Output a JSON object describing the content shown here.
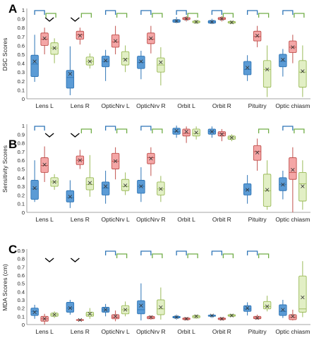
{
  "figure": {
    "series_colors": [
      {
        "fill": "#5b9bd5",
        "stroke": "#2e75b6"
      },
      {
        "fill": "#f4a6a6",
        "stroke": "#c0504d"
      },
      {
        "fill": "#e2efc5",
        "stroke": "#9bbb59"
      }
    ],
    "bracket_colors": {
      "blue": "#2e75b6",
      "green": "#70ad47",
      "black": "#000000"
    }
  },
  "chart_data": [
    {
      "type": "box",
      "panel_label": "A",
      "ylabel": "DSC Scores",
      "ylim": [
        0,
        1
      ],
      "yticks": [
        "0",
        "0.1",
        "0.2",
        "0.3",
        "0.4",
        "0.5",
        "0.6",
        "0.7",
        "0.8",
        "0.9",
        "1"
      ],
      "categories": [
        "Lens L",
        "Lens R",
        "OpticNrv L",
        "OpticNrv R",
        "Orbit L",
        "Orbit R",
        "Pituitry",
        "Optic chiasm"
      ],
      "series": [
        {
          "boxes": [
            [
              0.19,
              0.25,
              0.39,
              0.49,
              0.72,
              0.42
            ],
            [
              0.04,
              0.12,
              0.24,
              0.32,
              0.59,
              0.28
            ],
            [
              0.2,
              0.36,
              0.42,
              0.48,
              0.55,
              0.43
            ],
            [
              0.22,
              0.34,
              0.41,
              0.48,
              0.54,
              0.42
            ],
            [
              0.85,
              0.86,
              0.875,
              0.89,
              0.92,
              0.875
            ],
            [
              0.84,
              0.85,
              0.865,
              0.88,
              0.9,
              0.865
            ],
            [
              0.2,
              0.27,
              0.33,
              0.42,
              0.49,
              0.35
            ],
            [
              0.25,
              0.36,
              0.42,
              0.5,
              0.56,
              0.44
            ]
          ]
        },
        {
          "boxes": [
            [
              0.5,
              0.6,
              0.67,
              0.74,
              0.8,
              0.68
            ],
            [
              0.61,
              0.67,
              0.72,
              0.76,
              0.8,
              0.71
            ],
            [
              0.5,
              0.58,
              0.64,
              0.72,
              0.82,
              0.65
            ],
            [
              0.51,
              0.62,
              0.67,
              0.74,
              0.82,
              0.68
            ],
            [
              0.87,
              0.89,
              0.9,
              0.915,
              0.93,
              0.9
            ],
            [
              0.87,
              0.89,
              0.9,
              0.915,
              0.93,
              0.9
            ],
            [
              0.58,
              0.65,
              0.7,
              0.76,
              0.82,
              0.71
            ],
            [
              0.4,
              0.52,
              0.58,
              0.65,
              0.72,
              0.58
            ]
          ]
        },
        {
          "boxes": [
            [
              0.4,
              0.5,
              0.57,
              0.63,
              0.68,
              0.57
            ],
            [
              0.34,
              0.38,
              0.42,
              0.47,
              0.51,
              0.42
            ],
            [
              0.3,
              0.38,
              0.45,
              0.53,
              0.6,
              0.44
            ],
            [
              0.15,
              0.3,
              0.38,
              0.46,
              0.58,
              0.41
            ],
            [
              0.84,
              0.855,
              0.865,
              0.875,
              0.89,
              0.865
            ],
            [
              0.84,
              0.85,
              0.86,
              0.87,
              0.88,
              0.86
            ],
            [
              0.02,
              0.13,
              0.33,
              0.43,
              0.6,
              0.33
            ],
            [
              0.02,
              0.13,
              0.3,
              0.43,
              0.6,
              0.31
            ]
          ]
        }
      ],
      "brackets": [
        {
          "category": 0,
          "type": "blue"
        },
        {
          "category": 0,
          "type": "chevron"
        },
        {
          "category": 0,
          "type": "green"
        },
        {
          "category": 1,
          "type": "chevron"
        },
        {
          "category": 1,
          "type": "green"
        },
        {
          "category": 2,
          "type": "blue"
        },
        {
          "category": 2,
          "type": "green"
        },
        {
          "category": 3,
          "type": "blue"
        },
        {
          "category": 3,
          "type": "green"
        },
        {
          "category": 4,
          "type": "blue"
        },
        {
          "category": 4,
          "type": "green"
        },
        {
          "category": 5,
          "type": "blue"
        },
        {
          "category": 5,
          "type": "green"
        },
        {
          "category": 6,
          "type": "blue"
        },
        {
          "category": 6,
          "type": "green"
        },
        {
          "category": 7,
          "type": "blue"
        },
        {
          "category": 7,
          "type": "green"
        }
      ]
    },
    {
      "type": "box",
      "panel_label": "B",
      "ylabel": "Sensitivity Scores",
      "ylim": [
        0,
        1
      ],
      "yticks": [
        "0",
        "0.1",
        "0.2",
        "0.3",
        "0.4",
        "0.5",
        "0.6",
        "0.7",
        "0.8",
        "0.9",
        "1"
      ],
      "categories": [
        "Lens L",
        "Lens R",
        "OpticNrv L",
        "OpticNrv R",
        "Orbit L",
        "Orbit R",
        "Pituitry",
        "Optic chiasm"
      ],
      "series": [
        {
          "boxes": [
            [
              0.12,
              0.15,
              0.27,
              0.37,
              0.6,
              0.28
            ],
            [
              0.05,
              0.12,
              0.17,
              0.25,
              0.37,
              0.18
            ],
            [
              0.1,
              0.2,
              0.28,
              0.35,
              0.48,
              0.3
            ],
            [
              0.12,
              0.22,
              0.3,
              0.37,
              0.52,
              0.3
            ],
            [
              0.86,
              0.9,
              0.93,
              0.97,
              1.0,
              0.94
            ],
            [
              0.86,
              0.9,
              0.93,
              0.96,
              0.99,
              0.93
            ],
            [
              0.1,
              0.2,
              0.26,
              0.33,
              0.43,
              0.26
            ],
            [
              0.15,
              0.25,
              0.32,
              0.4,
              0.48,
              0.32
            ]
          ]
        },
        {
          "boxes": [
            [
              0.35,
              0.46,
              0.54,
              0.63,
              0.76,
              0.55
            ],
            [
              0.5,
              0.55,
              0.6,
              0.65,
              0.72,
              0.6
            ],
            [
              0.38,
              0.5,
              0.59,
              0.68,
              0.75,
              0.59
            ],
            [
              0.42,
              0.56,
              0.63,
              0.68,
              0.75,
              0.62
            ],
            [
              0.8,
              0.88,
              0.91,
              0.96,
              0.99,
              0.93
            ],
            [
              0.82,
              0.88,
              0.91,
              0.93,
              0.96,
              0.9
            ],
            [
              0.48,
              0.6,
              0.7,
              0.77,
              0.85,
              0.69
            ],
            [
              0.0,
              0.38,
              0.46,
              0.63,
              0.75,
              0.49
            ]
          ]
        },
        {
          "boxes": [
            [
              0.26,
              0.3,
              0.35,
              0.4,
              0.44,
              0.35
            ],
            [
              0.18,
              0.26,
              0.32,
              0.4,
              0.66,
              0.34
            ],
            [
              0.2,
              0.25,
              0.3,
              0.38,
              0.46,
              0.31
            ],
            [
              0.12,
              0.2,
              0.27,
              0.35,
              0.42,
              0.27
            ],
            [
              0.84,
              0.88,
              0.91,
              0.96,
              0.99,
              0.92
            ],
            [
              0.82,
              0.84,
              0.86,
              0.88,
              0.9,
              0.86
            ],
            [
              0.03,
              0.07,
              0.25,
              0.44,
              0.6,
              0.26
            ],
            [
              0.03,
              0.13,
              0.33,
              0.46,
              0.6,
              0.3
            ]
          ]
        }
      ],
      "brackets": [
        {
          "category": 0,
          "type": "blue"
        },
        {
          "category": 0,
          "type": "chevron"
        },
        {
          "category": 1,
          "type": "chevron"
        },
        {
          "category": 1,
          "type": "green"
        },
        {
          "category": 2,
          "type": "blue"
        },
        {
          "category": 2,
          "type": "green"
        },
        {
          "category": 3,
          "type": "blue"
        },
        {
          "category": 3,
          "type": "green"
        },
        {
          "category": 6,
          "type": "green"
        },
        {
          "category": 7,
          "type": "blue"
        },
        {
          "category": 7,
          "type": "green"
        }
      ]
    },
    {
      "type": "box",
      "panel_label": "C",
      "ylabel": "MDA Scores (cm)",
      "ylim": [
        0,
        0.9
      ],
      "yticks": [
        "0",
        "0.1",
        "0.2",
        "0.3",
        "0.4",
        "0.5",
        "0.6",
        "0.7",
        "0.8",
        "0.9"
      ],
      "categories": [
        "Lens L",
        "Lens R",
        "OpticNrv L",
        "OpticNrv R",
        "Orbit L",
        "Orbit R",
        "Pituitry",
        "Optic chiasm"
      ],
      "series": [
        {
          "boxes": [
            [
              0.07,
              0.11,
              0.16,
              0.2,
              0.24,
              0.15
            ],
            [
              0.12,
              0.15,
              0.2,
              0.27,
              0.3,
              0.2
            ],
            [
              0.1,
              0.15,
              0.18,
              0.21,
              0.25,
              0.18
            ],
            [
              0.05,
              0.13,
              0.18,
              0.29,
              0.5,
              0.23
            ],
            [
              0.06,
              0.08,
              0.09,
              0.1,
              0.12,
              0.09
            ],
            [
              0.08,
              0.1,
              0.11,
              0.115,
              0.12,
              0.11
            ],
            [
              0.11,
              0.16,
              0.19,
              0.23,
              0.27,
              0.2
            ],
            [
              0.08,
              0.11,
              0.16,
              0.24,
              0.3,
              0.18
            ]
          ]
        },
        {
          "boxes": [
            [
              0.0,
              0.04,
              0.07,
              0.1,
              0.13,
              0.07
            ],
            [
              0.05,
              0.05,
              0.055,
              0.06,
              0.06,
              0.055
            ],
            [
              0.04,
              0.07,
              0.09,
              0.12,
              0.17,
              0.1
            ],
            [
              0.06,
              0.07,
              0.085,
              0.1,
              0.11,
              0.09
            ],
            [
              0.05,
              0.06,
              0.07,
              0.08,
              0.09,
              0.07
            ],
            [
              0.05,
              0.06,
              0.07,
              0.08,
              0.09,
              0.07
            ],
            [
              0.06,
              0.07,
              0.08,
              0.1,
              0.12,
              0.08
            ],
            [
              0.05,
              0.06,
              0.09,
              0.12,
              0.18,
              0.1
            ]
          ]
        },
        {
          "boxes": [
            [
              0.08,
              0.1,
              0.12,
              0.14,
              0.16,
              0.12
            ],
            [
              0.07,
              0.1,
              0.12,
              0.15,
              0.2,
              0.13
            ],
            [
              0.1,
              0.13,
              0.18,
              0.23,
              0.28,
              0.18
            ],
            [
              0.06,
              0.12,
              0.19,
              0.3,
              0.45,
              0.21
            ],
            [
              0.07,
              0.08,
              0.1,
              0.11,
              0.12,
              0.1
            ],
            [
              0.09,
              0.1,
              0.11,
              0.12,
              0.13,
              0.11
            ],
            [
              0.16,
              0.19,
              0.22,
              0.28,
              0.35,
              0.22
            ],
            [
              0.09,
              0.15,
              0.19,
              0.59,
              0.77,
              0.33
            ]
          ]
        }
      ],
      "brackets": [
        {
          "category": 0,
          "type": "chevron"
        },
        {
          "category": 1,
          "type": "chevron"
        },
        {
          "category": 2,
          "type": "blue"
        },
        {
          "category": 2,
          "type": "green"
        },
        {
          "category": 3,
          "type": "blue"
        },
        {
          "category": 3,
          "type": "green"
        },
        {
          "category": 4,
          "type": "blue"
        },
        {
          "category": 4,
          "type": "green"
        },
        {
          "category": 5,
          "type": "blue"
        },
        {
          "category": 5,
          "type": "green"
        },
        {
          "category": 6,
          "type": "blue"
        },
        {
          "category": 6,
          "type": "green"
        }
      ]
    }
  ]
}
